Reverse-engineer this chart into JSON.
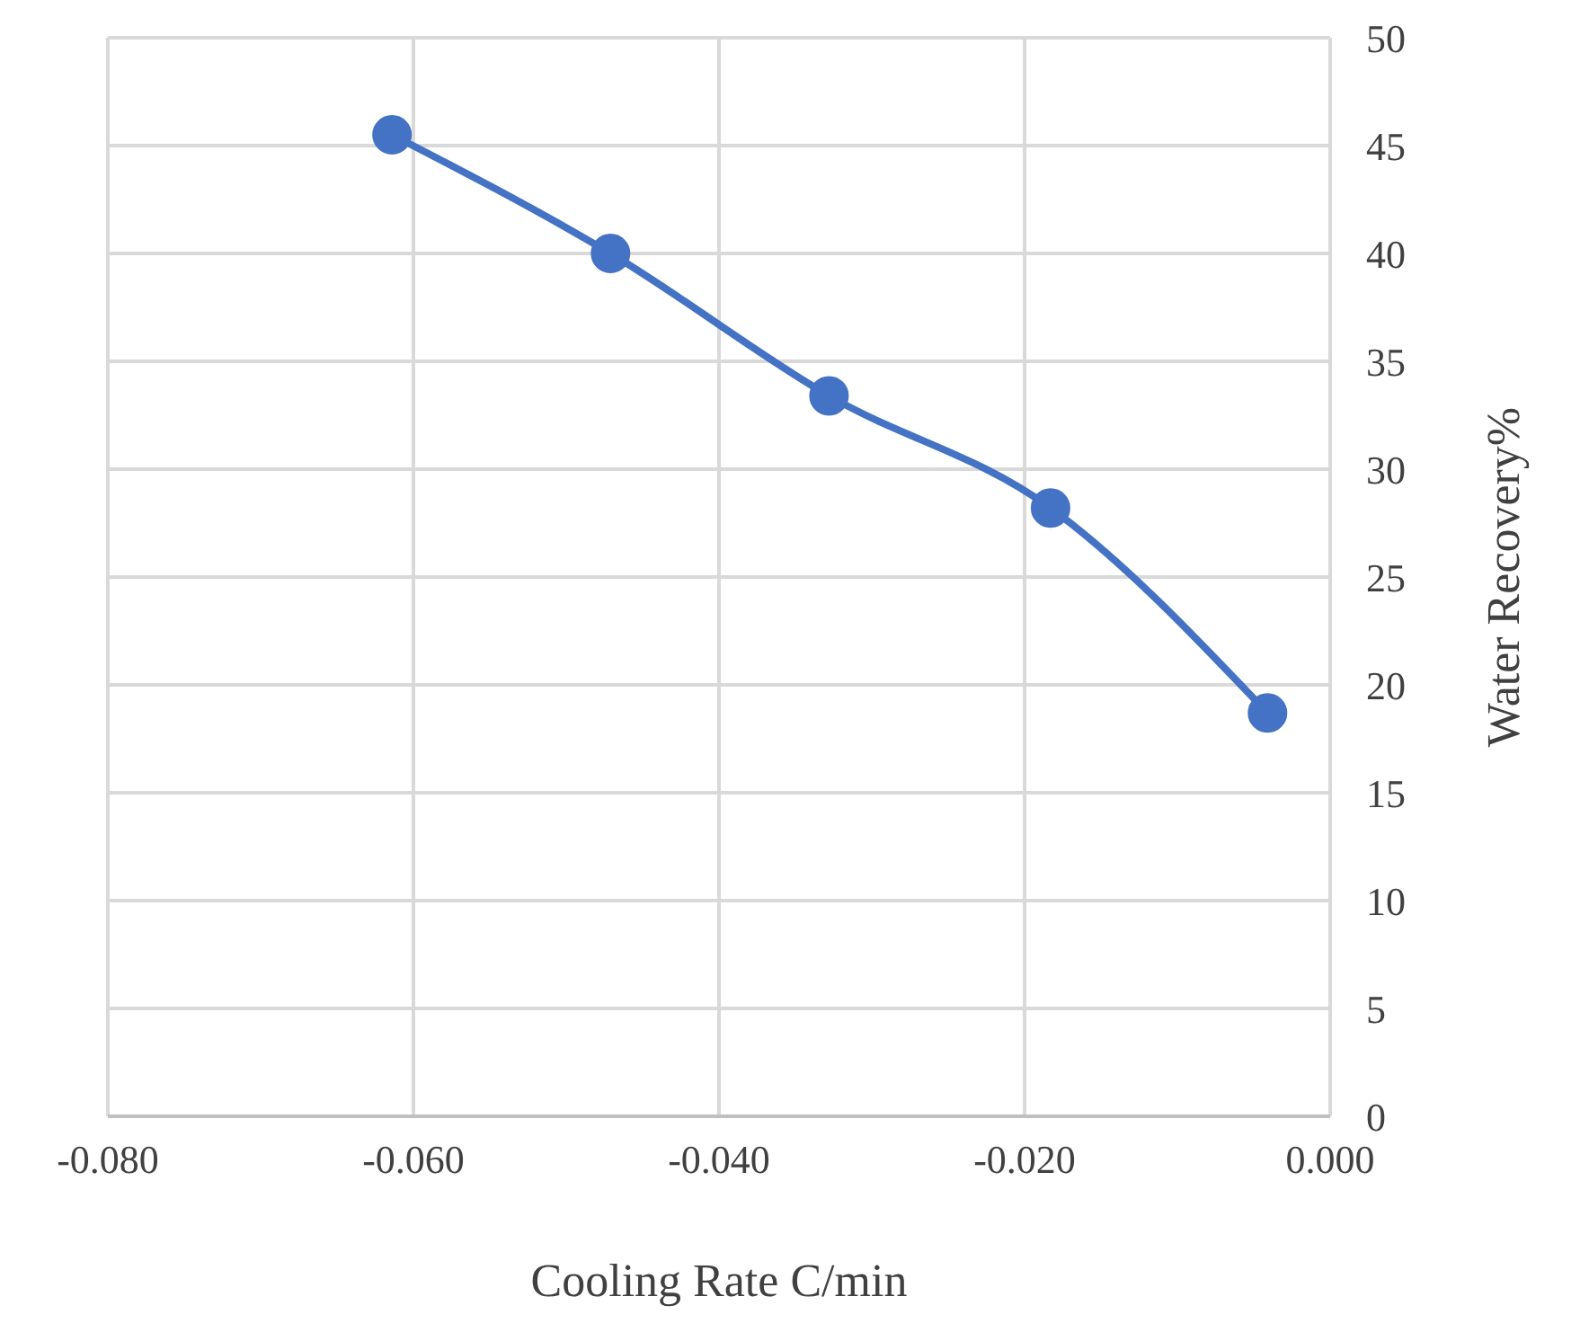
{
  "chart_data": {
    "type": "line",
    "xlabel": "Cooling Rate C/min",
    "ylabel": "Water Recovery%",
    "x": [
      -0.0614,
      -0.0471,
      -0.0328,
      -0.0183,
      -0.0041
    ],
    "series": [
      {
        "color": "#4472c4",
        "values": [
          45.5,
          40,
          33.4,
          28.2,
          18.7
        ]
      }
    ],
    "xlim": [
      -0.08,
      0
    ],
    "xticks": [
      {
        "value": -0.08,
        "label": "-0.080"
      },
      {
        "value": -0.06,
        "label": "-0.060"
      },
      {
        "value": -0.04,
        "label": "-0.040"
      },
      {
        "value": -0.02,
        "label": "-0.020"
      },
      {
        "value": 0,
        "label": "0.000"
      }
    ],
    "ylim": [
      0,
      50
    ],
    "yticks": [
      0,
      5,
      10,
      15,
      20,
      25,
      30,
      35,
      40,
      45,
      50
    ],
    "grid": true,
    "marker": "circle",
    "line_style": "solid"
  }
}
